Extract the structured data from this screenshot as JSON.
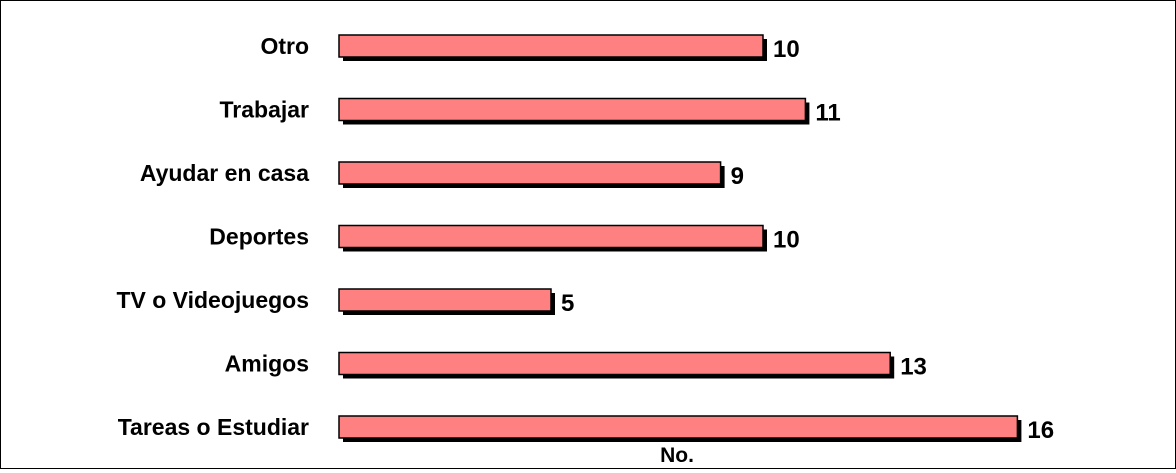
{
  "chart_data": {
    "type": "bar",
    "orientation": "horizontal",
    "categories": [
      "Otro",
      "Trabajar",
      "Ayudar en casa",
      "Deportes",
      "TV o Videojuegos",
      "Amigos",
      "Tareas o Estudiar"
    ],
    "values": [
      10,
      11,
      9,
      10,
      5,
      13,
      16
    ],
    "xlabel": "No.",
    "ylabel": "",
    "xlim": [
      0,
      16
    ],
    "grid": false,
    "legend": "none",
    "bar_color": "#ff8080",
    "shadow_color": "#000000",
    "data_labels": [
      "10",
      "11",
      "9",
      "10",
      "5",
      "13",
      "16"
    ]
  }
}
